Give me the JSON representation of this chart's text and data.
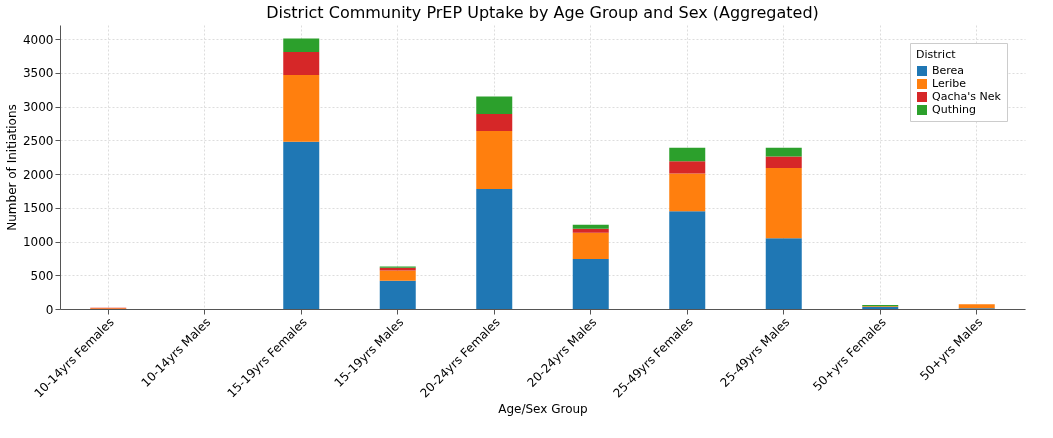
{
  "chart_data": {
    "type": "bar",
    "title": "District Community PrEP Uptake by Age Group and Sex (Aggregated)",
    "xlabel": "Age/Sex Group",
    "ylabel": "Number of Initiations",
    "legend_title": "District",
    "categories": [
      "10-14yrs Females",
      "10-14yrs Males",
      "15-19yrs Females",
      "15-19yrs Males",
      "20-24yrs Females",
      "20-24yrs Males",
      "25-49yrs Females",
      "25-49yrs Males",
      "50+yrs Females",
      "50+yrs Males"
    ],
    "stacked": true,
    "series": [
      {
        "name": "Berea",
        "color": "#1f77b4",
        "values": [
          0,
          0,
          2480,
          420,
          1780,
          740,
          1450,
          1050,
          30,
          10
        ]
      },
      {
        "name": "Leribe",
        "color": "#ff7f0e",
        "values": [
          10,
          0,
          990,
          150,
          860,
          390,
          560,
          1040,
          10,
          60
        ]
      },
      {
        "name": "Qacha's Nek",
        "color": "#d62728",
        "values": [
          10,
          0,
          340,
          40,
          250,
          60,
          180,
          170,
          0,
          null
        ]
      },
      {
        "name": "Quthing",
        "color": "#2ca02c",
        "values": [
          0,
          0,
          200,
          20,
          260,
          60,
          200,
          130,
          20,
          0
        ]
      }
    ],
    "ylim": [
      0,
      4210
    ],
    "yticks": [
      0,
      500,
      1000,
      1500,
      2000,
      2500,
      3000,
      3500,
      4000
    ],
    "grid": true,
    "legend": "top right"
  }
}
